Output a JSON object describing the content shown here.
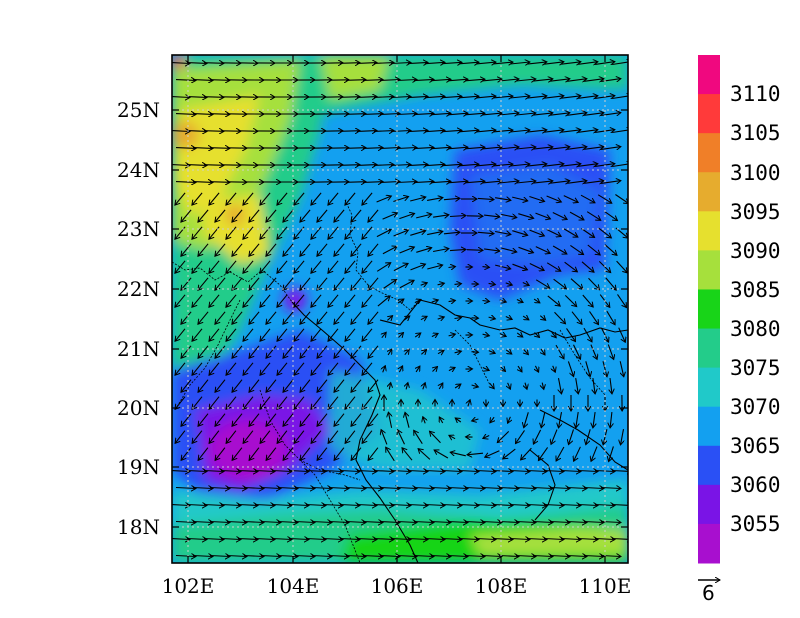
{
  "map": {
    "lon_labels": [
      "102E",
      "104E",
      "106E",
      "108E",
      "110E"
    ],
    "lat_labels": [
      "18N",
      "19N",
      "20N",
      "21N",
      "22N",
      "23N",
      "24N",
      "25N"
    ],
    "grid": true,
    "field_range": [
      3050,
      3115
    ],
    "low_center": {
      "lon": 103.2,
      "lat": 19.5
    },
    "high_area": {
      "lon": 103.0,
      "lat": 23.5
    }
  },
  "colorbar": {
    "labels": [
      "3110",
      "3105",
      "3100",
      "3095",
      "3090",
      "3085",
      "3080",
      "3075",
      "3070",
      "3065",
      "3060",
      "3055"
    ],
    "colors": [
      "#f0087f",
      "#ff3a3a",
      "#f07f28",
      "#e6ac2e",
      "#e6e02e",
      "#a6e03c",
      "#18d418",
      "#23cc8a",
      "#20c9c9",
      "#13a0f0",
      "#2a50f5",
      "#7a14e6",
      "#a80fcf"
    ]
  },
  "reference_vector": {
    "label": "6"
  }
}
